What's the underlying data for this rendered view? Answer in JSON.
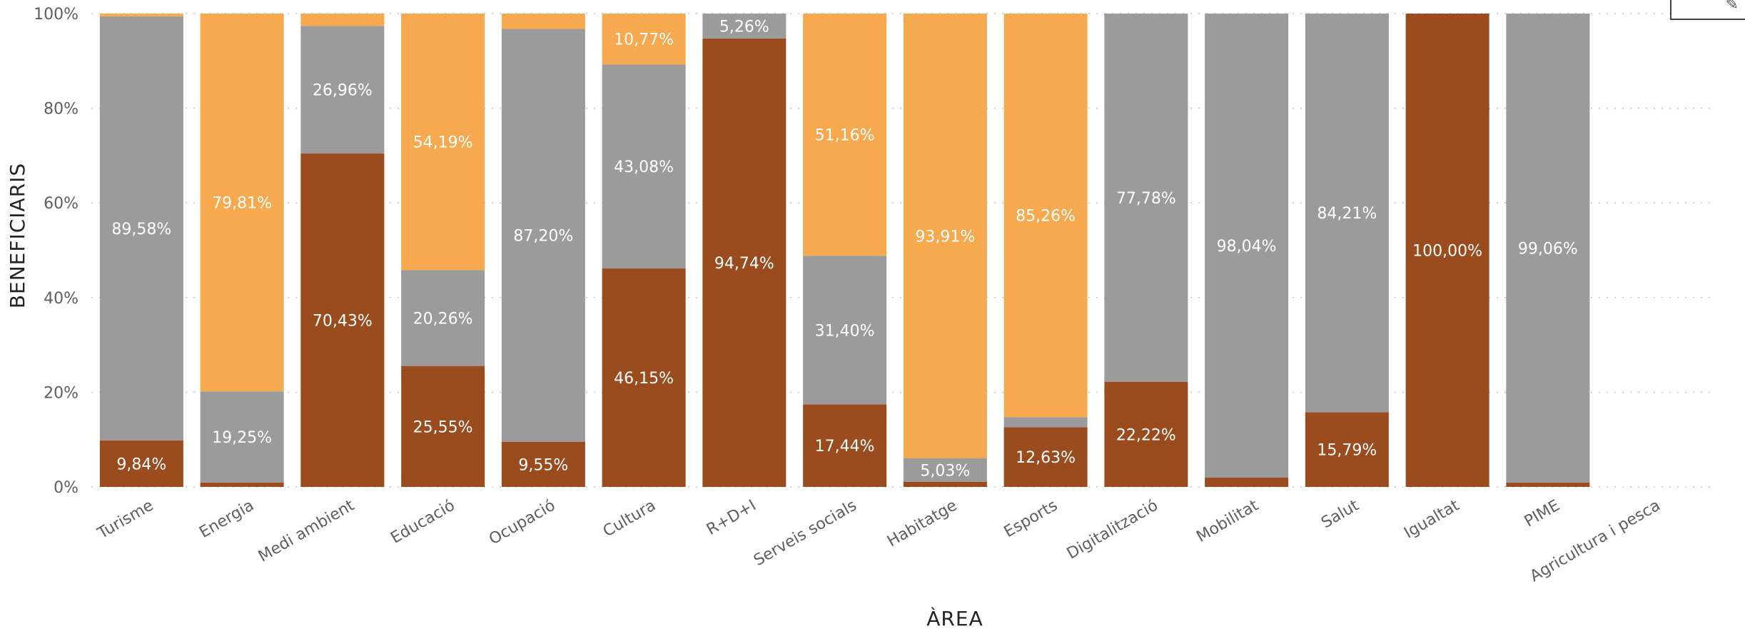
{
  "chart_data": {
    "type": "bar",
    "stacked": "percent",
    "xlabel": "ÀREA",
    "ylabel": "BENEFICIARIS",
    "ylim": [
      0,
      100
    ],
    "yticks": [
      "0%",
      "20%",
      "40%",
      "60%",
      "80%",
      "100%"
    ],
    "grid": true,
    "categories": [
      "Turisme",
      "Energia",
      "Medi ambient",
      "Educació",
      "Ocupació",
      "Cultura",
      "R+D+I",
      "Serveis socials",
      "Habitatge",
      "Esports",
      "Digitalització",
      "Mobilitat",
      "Salut",
      "Igualtat",
      "PIME",
      "Agricultura i pesca"
    ],
    "series": [
      {
        "color": "#9a4c1e",
        "values": [
          9.84,
          0.94,
          70.43,
          25.55,
          9.55,
          46.15,
          94.74,
          17.44,
          1.06,
          12.63,
          22.22,
          1.96,
          15.79,
          100.0,
          0.94,
          0
        ],
        "labels": [
          "9,84%",
          "",
          "70,43%",
          "25,55%",
          "9,55%",
          "46,15%",
          "94,74%",
          "17,44%",
          "",
          "12,63%",
          "22,22%",
          "",
          "15,79%",
          "100,00%",
          "",
          ""
        ]
      },
      {
        "color": "#9b9b9c",
        "values": [
          89.58,
          19.25,
          26.96,
          20.26,
          87.2,
          43.08,
          5.26,
          31.4,
          5.03,
          2.11,
          77.78,
          98.04,
          84.21,
          0,
          99.06,
          0
        ],
        "labels": [
          "89,58%",
          "19,25%",
          "26,96%",
          "20,26%",
          "87,20%",
          "43,08%",
          "5,26%",
          "31,40%",
          "5,03%",
          "",
          "77,78%",
          "98,04%",
          "84,21%",
          "",
          "99,06%",
          ""
        ]
      },
      {
        "color": "#f6a94f",
        "values": [
          0.58,
          79.81,
          2.61,
          54.19,
          3.25,
          10.77,
          0,
          51.16,
          93.91,
          85.26,
          0,
          0,
          0,
          0,
          0,
          0
        ],
        "labels": [
          "",
          "79,81%",
          "",
          "54,19%",
          "",
          "10,77%",
          "",
          "51,16%",
          "93,91%",
          "85,26%",
          "",
          "",
          "",
          "",
          "",
          ""
        ]
      }
    ]
  }
}
